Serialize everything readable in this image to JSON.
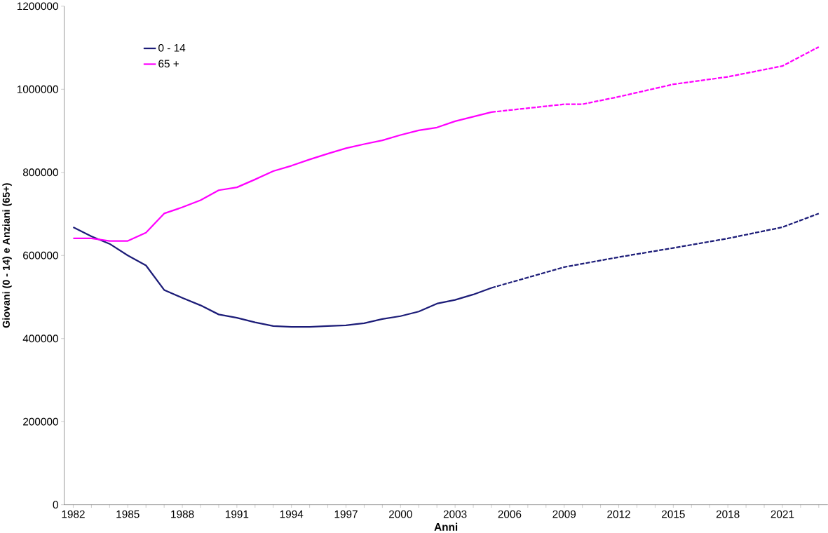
{
  "chart_data": {
    "type": "line",
    "xlabel": "Anni",
    "ylabel": "Giovani (0 - 14) e Anziani (65+)",
    "xlim": [
      1981.5,
      2023.5
    ],
    "ylim": [
      0,
      1200000
    ],
    "yticks": [
      0,
      200000,
      400000,
      600000,
      800000,
      1000000,
      1200000
    ],
    "xticks": [
      1982,
      {
        "value": 1983,
        "label": null
      },
      {
        "value": 1984,
        "label": null
      },
      1985,
      {
        "value": 1986,
        "label": null
      },
      {
        "value": 1987,
        "label": null
      },
      1988,
      {
        "value": 1989,
        "label": null
      },
      {
        "value": 1990,
        "label": null
      },
      1991,
      {
        "value": 1992,
        "label": null
      },
      {
        "value": 1993,
        "label": null
      },
      1994,
      {
        "value": 1995,
        "label": null
      },
      {
        "value": 1996,
        "label": null
      },
      1997,
      {
        "value": 1998,
        "label": null
      },
      {
        "value": 1999,
        "label": null
      },
      2000,
      {
        "value": 2001,
        "label": null
      },
      {
        "value": 2002,
        "label": null
      },
      2003,
      {
        "value": 2004,
        "label": null
      },
      {
        "value": 2005,
        "label": null
      },
      2006,
      {
        "value": 2007,
        "label": null
      },
      {
        "value": 2008,
        "label": null
      },
      2009,
      {
        "value": 2010,
        "label": null
      },
      {
        "value": 2011,
        "label": null
      },
      2012,
      {
        "value": 2013,
        "label": null
      },
      {
        "value": 2014,
        "label": null
      },
      2015,
      {
        "value": 2016,
        "label": null
      },
      {
        "value": 2017,
        "label": null
      },
      2018,
      {
        "value": 2019,
        "label": null
      },
      {
        "value": 2020,
        "label": null
      },
      2021,
      {
        "value": 2022,
        "label": null
      },
      {
        "value": 2023,
        "label": null
      }
    ],
    "grid": false,
    "legend": "top left",
    "marker": "none",
    "series": [
      {
        "name": "0 - 14",
        "color": "#1c1c78",
        "line_style": "solid",
        "x": [
          1982,
          1983,
          1984,
          1985,
          1986,
          1987,
          1988,
          1989,
          1990,
          1991,
          1992,
          1993,
          1994,
          1995,
          1996,
          1997,
          1998,
          1999,
          2000,
          2001,
          2002,
          2003,
          2004,
          2005
        ],
        "values": [
          668000,
          646000,
          628000,
          600000,
          576000,
          517000,
          498000,
          480000,
          458000,
          450000,
          439000,
          430000,
          428000,
          428000,
          430000,
          432000,
          437000,
          447000,
          454000,
          465000,
          484000,
          493000,
          506000,
          522000
        ]
      },
      {
        "name": "65 +",
        "color": "#ff00ff",
        "line_style": "solid",
        "x": [
          1982,
          1983,
          1984,
          1985,
          1986,
          1987,
          1988,
          1989,
          1990,
          1991,
          1992,
          1993,
          1994,
          1995,
          1996,
          1997,
          1998,
          1999,
          2000,
          2001,
          2002,
          2003,
          2004,
          2005
        ],
        "values": [
          641000,
          641000,
          635000,
          635000,
          655000,
          701000,
          716000,
          733000,
          757000,
          764000,
          783000,
          803000,
          816000,
          831000,
          845000,
          858000,
          868000,
          877000,
          890000,
          901000,
          908000,
          923000,
          934000,
          945000
        ]
      },
      {
        "color": "#1c1c78",
        "line_style": "dashed",
        "x": [
          2005,
          2009,
          2012,
          2015,
          2018,
          2021,
          2023
        ],
        "values": [
          522000,
          572000,
          596000,
          618000,
          641000,
          668000,
          701000
        ]
      },
      {
        "color": "#ff00ff",
        "line_style": "dashed",
        "x": [
          2005,
          2009,
          2010,
          2012,
          2015,
          2018,
          2021,
          2023
        ],
        "values": [
          945000,
          964000,
          964000,
          982000,
          1012000,
          1030000,
          1056000,
          1102000
        ]
      }
    ]
  }
}
